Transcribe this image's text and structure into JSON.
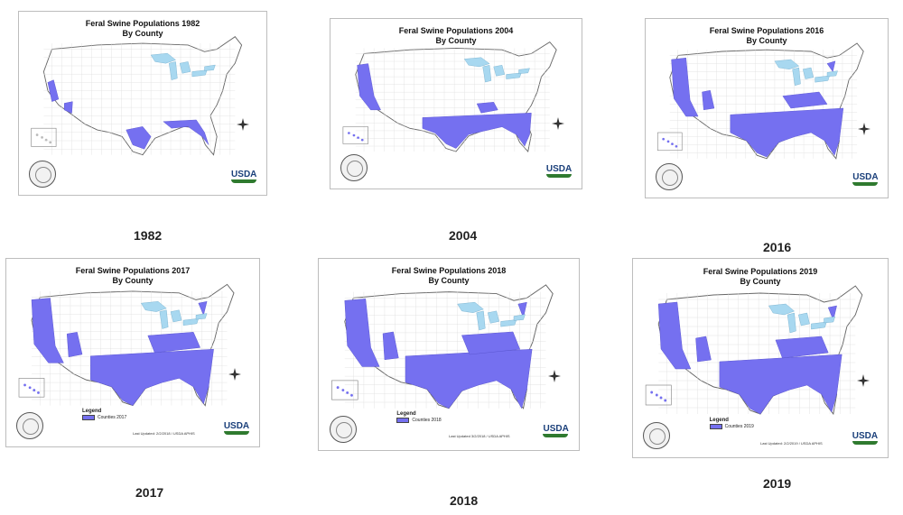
{
  "panels": [
    {
      "title": "Feral Swine Populations 1982",
      "subtitle": "By County",
      "year_label": "1982",
      "has_legend_box": false
    },
    {
      "title": "Feral Swine Populations 2004",
      "subtitle": "By County",
      "year_label": "2004",
      "has_legend_box": false
    },
    {
      "title": "Feral Swine Populations 2016",
      "subtitle": "By County",
      "year_label": "2016",
      "has_legend_box": false
    },
    {
      "title": "Feral Swine Populations 2017",
      "subtitle": "By County",
      "year_label": "2017",
      "legend_title": "Legend",
      "legend_item": "Counties 2017",
      "updated": "Last Updated: 2/2/2018 / USDA APHIS"
    },
    {
      "title": "Feral Swine Populations 2018",
      "subtitle": "By County",
      "year_label": "2018",
      "legend_title": "Legend",
      "legend_item": "Counties 2018",
      "updated": "Last Updated 3/2/2018 / USDA APHIS"
    },
    {
      "title": "Feral Swine Populations 2019",
      "subtitle": "By County",
      "year_label": "2019",
      "legend_title": "Legend",
      "legend_item": "Counties 2019",
      "updated": "Last Updated: 2/2/2019 / USDA APHIS"
    }
  ],
  "brand": {
    "usda_text": "USDA"
  },
  "colors": {
    "presence": "#7570f0",
    "lakes": "#a8d8f0",
    "land": "#ffffff",
    "outline": "#666666"
  },
  "map_info": {
    "subject": "Feral swine county presence, contiguous US",
    "years": [
      1982,
      2004,
      2016,
      2017,
      2018,
      2019
    ],
    "trend": "Presence spreads from the Gulf Coast and California in 1982 to most of the southern US by 2017–2019"
  },
  "icons": [
    "compass-rose-icon",
    "usda-logo",
    "aphis-seal"
  ]
}
